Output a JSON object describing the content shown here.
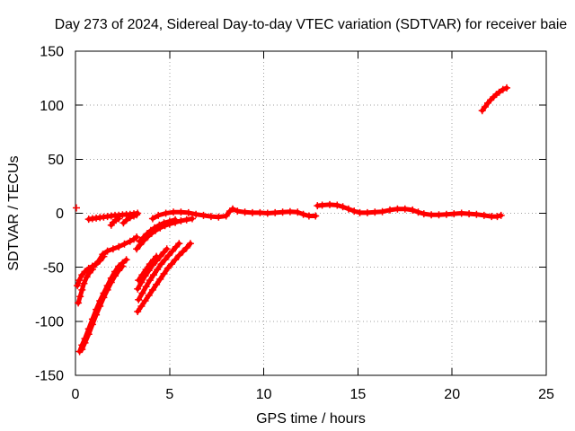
{
  "chart_data": {
    "type": "scatter",
    "title": "Day 273 of 2024, Sidereal Day-to-day VTEC variation (SDTVAR) for receiver baie",
    "xlabel": "GPS time / hours",
    "ylabel": "SDTVAR / TECUs",
    "xlim": [
      0,
      25
    ],
    "ylim": [
      -150,
      150
    ],
    "xticks": [
      0,
      5,
      10,
      15,
      20,
      25
    ],
    "yticks": [
      -150,
      -100,
      -50,
      0,
      50,
      100,
      150
    ],
    "grid": true,
    "colors": {
      "points": "#ff0000",
      "grid": "#a0a0a0",
      "axes": "#000000"
    },
    "series": [
      {
        "points": [
          [
            0.05,
            5
          ]
        ]
      },
      {
        "points": [
          [
            0.22,
            -128
          ],
          [
            0.35,
            -122
          ],
          [
            0.5,
            -116
          ],
          [
            0.7,
            -107
          ],
          [
            0.9,
            -98
          ],
          [
            1.1,
            -89
          ],
          [
            1.3,
            -81
          ],
          [
            1.5,
            -74
          ],
          [
            1.7,
            -67
          ],
          [
            1.9,
            -60
          ],
          [
            2.1,
            -54
          ],
          [
            2.3,
            -49
          ],
          [
            2.5,
            -46
          ],
          [
            2.7,
            -43
          ]
        ]
      },
      {
        "points": [
          [
            0.35,
            -126
          ],
          [
            0.5,
            -120
          ],
          [
            0.7,
            -112
          ],
          [
            0.9,
            -103
          ],
          [
            1.1,
            -94
          ],
          [
            1.3,
            -86
          ],
          [
            1.5,
            -78
          ],
          [
            1.7,
            -71
          ],
          [
            1.9,
            -64
          ],
          [
            2.1,
            -58
          ],
          [
            2.3,
            -53
          ],
          [
            2.5,
            -49
          ]
        ]
      },
      {
        "points": [
          [
            0.15,
            -83
          ],
          [
            0.25,
            -77
          ],
          [
            0.35,
            -71
          ],
          [
            0.45,
            -65
          ],
          [
            0.6,
            -59
          ],
          [
            0.75,
            -55
          ],
          [
            0.9,
            -52
          ]
        ]
      },
      {
        "points": [
          [
            0.1,
            -67
          ],
          [
            0.2,
            -62
          ],
          [
            0.35,
            -57
          ],
          [
            0.5,
            -54
          ],
          [
            0.7,
            -51
          ],
          [
            0.9,
            -49
          ],
          [
            1.1,
            -47
          ],
          [
            1.3,
            -44
          ],
          [
            1.5,
            -40
          ]
        ]
      },
      {
        "points": [
          [
            0.9,
            -50
          ],
          [
            1.2,
            -45
          ],
          [
            1.45,
            -38
          ],
          [
            1.7,
            -35
          ],
          [
            2.0,
            -33
          ],
          [
            2.3,
            -31
          ],
          [
            2.6,
            -28.5
          ],
          [
            2.9,
            -26
          ],
          [
            3.1,
            -24
          ],
          [
            3.25,
            -22
          ]
        ]
      },
      {
        "points": [
          [
            0.7,
            -5.5
          ],
          [
            0.9,
            -5
          ],
          [
            1.1,
            -4.5
          ],
          [
            1.3,
            -4
          ],
          [
            1.5,
            -3.5
          ],
          [
            1.7,
            -3
          ],
          [
            1.9,
            -2.5
          ],
          [
            2.1,
            -2
          ],
          [
            2.3,
            -1.8
          ],
          [
            2.5,
            -1.5
          ],
          [
            2.7,
            -1.2
          ],
          [
            2.9,
            -1
          ],
          [
            3.1,
            -0.5
          ],
          [
            3.3,
            0
          ]
        ]
      },
      {
        "points": [
          [
            1.9,
            -11
          ],
          [
            2.0,
            -8.5
          ],
          [
            2.15,
            -6.5
          ],
          [
            2.3,
            -5
          ]
        ]
      },
      {
        "points": [
          [
            2.55,
            -9
          ],
          [
            2.7,
            -6.5
          ],
          [
            2.9,
            -4
          ],
          [
            3.1,
            -2.5
          ],
          [
            3.25,
            -1.5
          ]
        ]
      },
      {
        "points": [
          [
            3.3,
            -91
          ],
          [
            3.5,
            -86
          ],
          [
            3.7,
            -81
          ],
          [
            3.9,
            -76
          ],
          [
            4.1,
            -71
          ],
          [
            4.3,
            -66
          ],
          [
            4.5,
            -61
          ],
          [
            4.7,
            -56
          ],
          [
            4.9,
            -51
          ],
          [
            5.1,
            -47
          ],
          [
            5.3,
            -43
          ],
          [
            5.5,
            -39
          ],
          [
            5.7,
            -35.5
          ],
          [
            5.9,
            -32
          ],
          [
            6.1,
            -28
          ]
        ]
      },
      {
        "points": [
          [
            3.35,
            -80
          ],
          [
            3.55,
            -74
          ],
          [
            3.75,
            -68
          ],
          [
            3.95,
            -62
          ],
          [
            4.15,
            -57
          ],
          [
            4.35,
            -52
          ],
          [
            4.55,
            -47
          ],
          [
            4.75,
            -43
          ],
          [
            4.95,
            -39
          ],
          [
            5.15,
            -35
          ],
          [
            5.35,
            -31
          ],
          [
            5.5,
            -28
          ]
        ]
      },
      {
        "points": [
          [
            3.3,
            -70
          ],
          [
            3.5,
            -64
          ],
          [
            3.7,
            -58
          ],
          [
            3.9,
            -53
          ],
          [
            4.1,
            -48
          ],
          [
            4.3,
            -44
          ],
          [
            4.5,
            -40
          ],
          [
            4.7,
            -36
          ],
          [
            4.85,
            -33
          ]
        ]
      },
      {
        "points": [
          [
            3.35,
            -62
          ],
          [
            3.55,
            -57
          ],
          [
            3.75,
            -52
          ],
          [
            3.95,
            -47
          ],
          [
            4.15,
            -43
          ],
          [
            4.3,
            -40
          ]
        ]
      },
      {
        "points": [
          [
            3.25,
            -33
          ],
          [
            3.45,
            -29
          ],
          [
            3.65,
            -25
          ],
          [
            3.85,
            -21.5
          ],
          [
            4.05,
            -18.5
          ],
          [
            4.25,
            -16
          ],
          [
            4.5,
            -13.5
          ],
          [
            4.75,
            -11.5
          ],
          [
            5.0,
            -10
          ],
          [
            5.3,
            -8.5
          ],
          [
            5.6,
            -7
          ],
          [
            5.9,
            -6
          ],
          [
            6.2,
            -5
          ]
        ]
      },
      {
        "points": [
          [
            3.4,
            -26
          ],
          [
            3.6,
            -22.5
          ],
          [
            3.8,
            -19
          ],
          [
            4.0,
            -16
          ],
          [
            4.2,
            -13.5
          ],
          [
            4.45,
            -11
          ],
          [
            4.7,
            -9
          ],
          [
            5.0,
            -7.5
          ],
          [
            5.3,
            -6
          ]
        ]
      },
      {
        "points": [
          [
            4.1,
            -5
          ],
          [
            4.4,
            -2
          ],
          [
            4.8,
            0
          ],
          [
            5.2,
            1
          ],
          [
            5.6,
            1
          ],
          [
            6.0,
            0.5
          ],
          [
            6.4,
            -1
          ],
          [
            6.8,
            -2
          ],
          [
            7.2,
            -3
          ],
          [
            7.6,
            -3.5
          ],
          [
            8.0,
            -2.5
          ],
          [
            8.2,
            2
          ],
          [
            8.35,
            4
          ],
          [
            8.6,
            2
          ],
          [
            9.0,
            1
          ],
          [
            9.4,
            0.5
          ],
          [
            9.8,
            0.5
          ],
          [
            10.2,
            0
          ],
          [
            10.6,
            0.5
          ],
          [
            11.0,
            1
          ],
          [
            11.4,
            1.5
          ],
          [
            11.8,
            1
          ],
          [
            12.1,
            -1
          ],
          [
            12.4,
            -2.5
          ],
          [
            12.75,
            -2.5
          ]
        ]
      },
      {
        "points": [
          [
            12.85,
            7
          ],
          [
            13.1,
            7.5
          ],
          [
            13.5,
            8
          ],
          [
            13.9,
            7.5
          ],
          [
            14.2,
            6
          ],
          [
            14.5,
            4
          ],
          [
            14.8,
            2
          ],
          [
            15.1,
            0.5
          ],
          [
            15.5,
            0.5
          ],
          [
            15.9,
            1
          ],
          [
            16.3,
            1.5
          ],
          [
            16.7,
            3
          ],
          [
            17.1,
            4
          ],
          [
            17.5,
            4
          ],
          [
            17.9,
            3
          ],
          [
            18.2,
            1
          ],
          [
            18.5,
            -0.5
          ],
          [
            18.9,
            -1.5
          ],
          [
            19.3,
            -1.5
          ],
          [
            19.7,
            -1
          ],
          [
            20.1,
            -0.5
          ],
          [
            20.5,
            0
          ],
          [
            20.9,
            -0.5
          ],
          [
            21.3,
            -1
          ],
          [
            21.7,
            -2
          ],
          [
            22.1,
            -3
          ],
          [
            22.4,
            -3
          ],
          [
            22.6,
            -2
          ]
        ]
      },
      {
        "points": [
          [
            21.6,
            95
          ],
          [
            21.75,
            98.5
          ],
          [
            21.9,
            102
          ],
          [
            22.05,
            105
          ],
          [
            22.2,
            107.5
          ],
          [
            22.35,
            110
          ],
          [
            22.5,
            112
          ],
          [
            22.7,
            114.5
          ],
          [
            22.9,
            116
          ]
        ]
      }
    ]
  }
}
